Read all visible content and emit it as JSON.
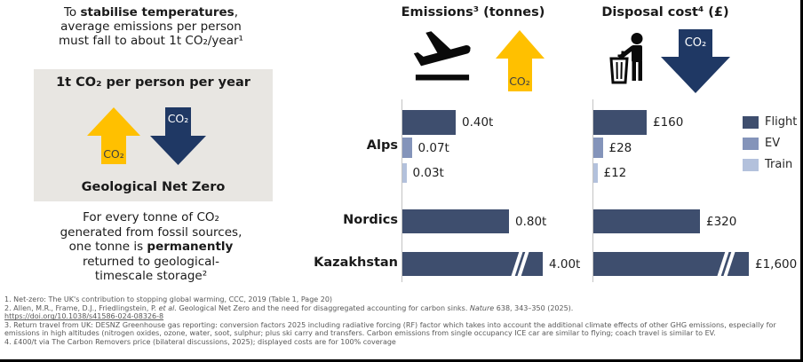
{
  "colors": {
    "flight": "#3e4e6e",
    "ev": "#8494ba",
    "train": "#b3c1dc",
    "co2_up_arrow": "#ffc000",
    "co2_down_arrow": "#1f3864",
    "net_zero_box_bg": "#e8e6e2",
    "footnote_text": "#595959"
  },
  "icons": {
    "emissions": "plane-takeoff-icon",
    "disposal": "person-litter-bin-icon",
    "up": "co2-up-arrow",
    "down": "co2-down-arrow"
  },
  "left_panel": {
    "intro": {
      "line1_pre": "To ",
      "line1_bold": "stabilise temperatures",
      "line1_post": ",",
      "line2": "average emissions per person",
      "line3": "must fall to about 1t CO₂/year¹"
    },
    "box": {
      "heading": "1t CO₂ per person per year",
      "up_arrow_label": "CO₂",
      "down_arrow_label": "CO₂",
      "caption": "Geological Net Zero"
    },
    "outro": {
      "line1": "For every tonne of CO₂",
      "line2": "generated from fossil sources,",
      "line3_pre": "one tonne is ",
      "line3_bold": "permanently",
      "line4": "returned to geological-",
      "line5": "timescale storage²"
    }
  },
  "categories": [
    "Alps",
    "Nordics",
    "Kazakhstan"
  ],
  "emissions_chart": {
    "title": "Emissions³ (tonnes)",
    "arrow_label": "CO₂",
    "bars": [
      {
        "category": "Alps",
        "series": "Flight",
        "value": 0.4,
        "label": "0.40t"
      },
      {
        "category": "Alps",
        "series": "EV",
        "value": 0.07,
        "label": "0.07t"
      },
      {
        "category": "Alps",
        "series": "Train",
        "value": 0.03,
        "label": "0.03t"
      },
      {
        "category": "Nordics",
        "series": "Flight",
        "value": 0.8,
        "label": "0.80t"
      },
      {
        "category": "Kazakhstan",
        "series": "Flight",
        "value": 4.0,
        "label": "4.00t",
        "axis_break": true
      }
    ]
  },
  "disposal_chart": {
    "title": "Disposal cost⁴ (£)",
    "arrow_label": "CO₂",
    "bars": [
      {
        "category": "Alps",
        "series": "Flight",
        "value": 160,
        "label": "£160"
      },
      {
        "category": "Alps",
        "series": "EV",
        "value": 28,
        "label": "£28"
      },
      {
        "category": "Alps",
        "series": "Train",
        "value": 12,
        "label": "£12"
      },
      {
        "category": "Nordics",
        "series": "Flight",
        "value": 320,
        "label": "£320"
      },
      {
        "category": "Kazakhstan",
        "series": "Flight",
        "value": 1600,
        "label": "£1,600",
        "axis_break": true
      }
    ]
  },
  "legend": [
    {
      "label": "Flight",
      "color": "#3e4e6e"
    },
    {
      "label": "EV",
      "color": "#8494ba"
    },
    {
      "label": "Train",
      "color": "#b3c1dc"
    }
  ],
  "footnotes": {
    "f1": "1. Net-zero: The UK's contribution to stopping global warming, CCC, 2019 (Table 1, Page 20)",
    "f2_pre": "2. Allen, M.R., Frame, D.J., Friedlingstein, P. ",
    "f2_it1": "et al.",
    "f2_mid": " Geological Net Zero and the need for disaggregated accounting for carbon sinks. ",
    "f2_it2": "Nature",
    "f2_post": " 638, 343–350 (2025).",
    "f2_link": "https://doi.org/10.1038/s41586-024-08326-8",
    "f3": "3. Return travel from UK: DESNZ Greenhouse gas reporting: conversion factors 2025 including radiative forcing (RF) factor which takes into account the additional climate effects of other GHG emissions, especially for emissions in high altitudes (nitrogen oxides, ozone, water, soot, sulphur; plus ski carry and transfers. Carbon emissions from single occupancy ICE car are similar to flying; coach travel is similar to EV.",
    "f4": "4. £400/t via The Carbon Removers price (bilateral discussions, 2025); displayed costs are for 100% coverage"
  },
  "chart_data": [
    {
      "type": "bar",
      "orientation": "horizontal",
      "title": "Emissions³ (tonnes)",
      "categories": [
        "Alps",
        "Nordics",
        "Kazakhstan"
      ],
      "series": [
        {
          "name": "Flight",
          "values": [
            0.4,
            0.8,
            4.0
          ]
        },
        {
          "name": "EV",
          "values": [
            0.07,
            null,
            null
          ]
        },
        {
          "name": "Train",
          "values": [
            0.03,
            null,
            null
          ]
        }
      ],
      "data_labels": [
        [
          "0.40t",
          "0.80t",
          "4.00t"
        ],
        [
          "0.07t",
          null,
          null
        ],
        [
          "0.03t",
          null,
          null
        ]
      ],
      "axis_break": {
        "category": "Kazakhstan",
        "series": "Flight"
      },
      "grid": false,
      "legend_position": "right"
    },
    {
      "type": "bar",
      "orientation": "horizontal",
      "title": "Disposal cost⁴ (£)",
      "categories": [
        "Alps",
        "Nordics",
        "Kazakhstan"
      ],
      "series": [
        {
          "name": "Flight",
          "values": [
            160,
            320,
            1600
          ]
        },
        {
          "name": "EV",
          "values": [
            28,
            null,
            null
          ]
        },
        {
          "name": "Train",
          "values": [
            12,
            null,
            null
          ]
        }
      ],
      "data_labels": [
        [
          "£160",
          "£320",
          "£1,600"
        ],
        [
          "£28",
          null,
          null
        ],
        [
          "£12",
          null,
          null
        ]
      ],
      "axis_break": {
        "category": "Kazakhstan",
        "series": "Flight"
      },
      "grid": false,
      "legend_position": "right"
    }
  ]
}
